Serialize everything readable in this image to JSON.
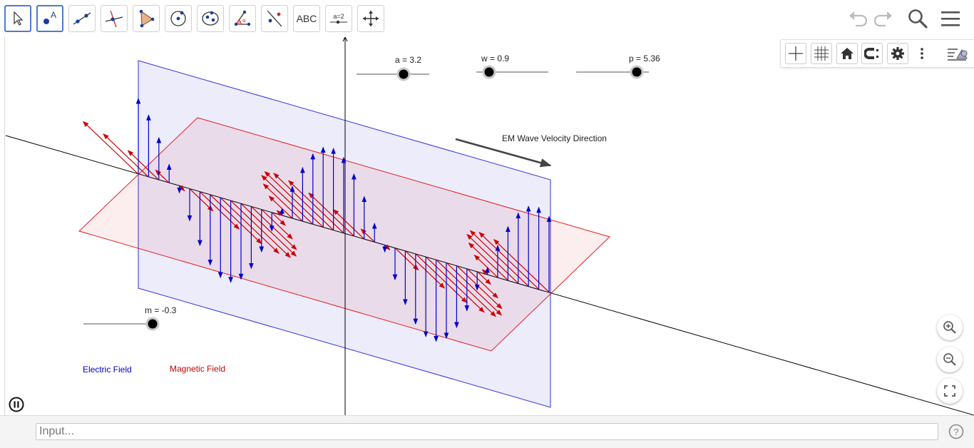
{
  "toolbar": {
    "tools": [
      {
        "name": "move-tool"
      },
      {
        "name": "point-tool"
      },
      {
        "name": "line-tool"
      },
      {
        "name": "perpendicular-line-tool"
      },
      {
        "name": "polygon-tool"
      },
      {
        "name": "circle-tool"
      },
      {
        "name": "ellipse-tool"
      },
      {
        "name": "angle-tool"
      },
      {
        "name": "reflect-tool"
      },
      {
        "name": "text-tool",
        "label": "ABC"
      },
      {
        "name": "slider-tool",
        "label": "a=2"
      },
      {
        "name": "move-graphics-view-tool"
      }
    ]
  },
  "sliders": {
    "a": {
      "label": "a = 3.2",
      "value": 3.2
    },
    "w": {
      "label": "w = 0.9",
      "value": 0.9
    },
    "p": {
      "label": "p = 5.36",
      "value": 5.36
    },
    "m": {
      "label": "m = -0.3",
      "value": -0.3
    }
  },
  "graphics": {
    "velocity_label": "EM Wave Velocity Direction",
    "electric_label": "Electric Field",
    "magnetic_label": "Magnetic Field",
    "colors": {
      "electric": "#0000cc",
      "magnetic": "#cc0000",
      "axis": "#000000"
    }
  },
  "input_bar": {
    "placeholder": "Input..."
  }
}
